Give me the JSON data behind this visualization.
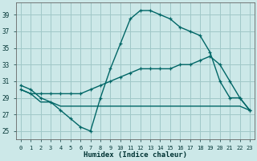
{
  "xlabel": "Humidex (Indice chaleur)",
  "background_color": "#cce8e8",
  "grid_color": "#a0c8c8",
  "line_color": "#006666",
  "x_ticks": [
    0,
    1,
    2,
    3,
    4,
    5,
    6,
    7,
    8,
    9,
    10,
    11,
    12,
    13,
    14,
    15,
    16,
    17,
    18,
    19,
    20,
    21,
    22,
    23
  ],
  "y_ticks": [
    25,
    27,
    29,
    31,
    33,
    35,
    37,
    39
  ],
  "xlim": [
    -0.5,
    23.5
  ],
  "ylim": [
    24.0,
    40.5
  ],
  "series1_x": [
    0,
    1,
    2,
    3,
    4,
    5,
    6,
    7,
    8,
    9,
    10,
    11,
    12,
    13,
    14,
    15,
    16,
    17,
    18,
    19,
    20,
    21,
    22,
    23
  ],
  "series1_y": [
    30.5,
    30.0,
    29.0,
    28.5,
    27.5,
    26.5,
    25.5,
    25.0,
    29.0,
    32.5,
    35.5,
    38.5,
    39.5,
    39.5,
    39.0,
    38.5,
    37.5,
    37.0,
    36.5,
    34.5,
    31.0,
    29.0,
    29.0,
    27.5
  ],
  "series2_x": [
    0,
    1,
    2,
    3,
    4,
    5,
    6,
    7,
    8,
    9,
    10,
    11,
    12,
    13,
    14,
    15,
    16,
    17,
    18,
    19,
    20,
    21,
    22,
    23
  ],
  "series2_y": [
    30.0,
    29.5,
    29.5,
    29.5,
    29.5,
    29.5,
    29.5,
    30.0,
    30.5,
    31.0,
    31.5,
    32.0,
    32.5,
    32.5,
    32.5,
    32.5,
    33.0,
    33.0,
    33.5,
    34.0,
    33.0,
    31.0,
    29.0,
    27.5
  ],
  "series3_x": [
    0,
    1,
    2,
    3,
    4,
    5,
    6,
    7,
    8,
    9,
    10,
    11,
    12,
    13,
    14,
    15,
    16,
    17,
    18,
    19,
    20,
    21,
    22,
    23
  ],
  "series3_y": [
    30.0,
    29.5,
    28.5,
    28.5,
    28.0,
    28.0,
    28.0,
    28.0,
    28.0,
    28.0,
    28.0,
    28.0,
    28.0,
    28.0,
    28.0,
    28.0,
    28.0,
    28.0,
    28.0,
    28.0,
    28.0,
    28.0,
    28.0,
    27.5
  ],
  "series4_x": [
    2,
    3,
    9
  ],
  "series4_y": [
    29.0,
    28.5,
    32.0
  ]
}
